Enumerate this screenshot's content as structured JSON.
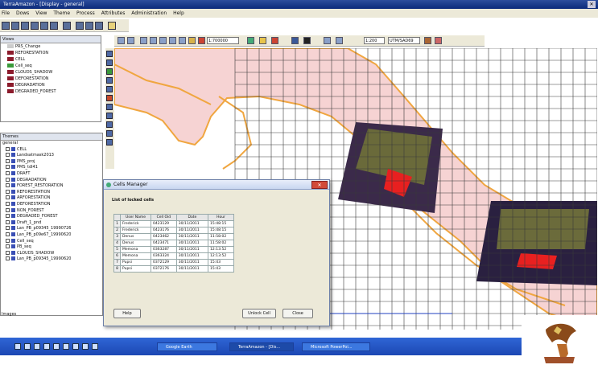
{
  "window": {
    "title": "TerraAmazon - [Display - general]"
  },
  "menu": [
    "File",
    "Dows",
    "View",
    "Theme",
    "Process",
    "Attributes",
    "Administration",
    "Help"
  ],
  "map_toolbar": {
    "scale": "1:700000",
    "zoom": "1:200",
    "projection": "UTM/SAD69"
  },
  "layers": {
    "header": "Views",
    "items": [
      {
        "label": "PRS_Change",
        "color": "#cccccc"
      },
      {
        "label": "REFORESTATION",
        "color": "#8b1a2b"
      },
      {
        "label": "CELL",
        "color": "#8b1a2b"
      },
      {
        "label": "Cell_seq",
        "color": "#3a9a3a"
      },
      {
        "label": "CLOUDS_SHADOW",
        "color": "#8b1a2b"
      },
      {
        "label": "DEFORESTATION",
        "color": "#8b1a2b"
      },
      {
        "label": "DEGRADATION",
        "color": "#8b1a2b"
      },
      {
        "label": "DEGRADED_FOREST",
        "color": "#8b1a2b"
      }
    ]
  },
  "themes": {
    "header": "Themes",
    "root": "general",
    "items": [
      "CELL",
      "Landsatmask2013",
      "PMS_proj",
      "PMS_tdl41",
      "DRAFT",
      "DEGRADATION",
      "FOREST_RESTORATION",
      "REFORESTATION",
      "ARFORESTATION",
      "DEFORESTATION",
      "NON_FOREST",
      "DEGRADED_FOREST",
      "Draft_1_pnd",
      "Lan_PB_p09345_19990726",
      "Lan_PB_p09e67_19990620",
      "Cell_seq",
      "PB_seq",
      "CLOUDS_SHADOW",
      "Lan_PB_p09345_19990620"
    ],
    "footer": "Images"
  },
  "dialog": {
    "title": "Cells Manager",
    "subtitle": "List of locked cells",
    "close_label": "✕",
    "columns": [
      "User Name",
      "Cell Oid",
      "Date",
      "Hour"
    ],
    "rows": [
      [
        "Frederick",
        "0423129",
        "30/11/2011",
        "15:48:15"
      ],
      [
        "Frederick",
        "0423176",
        "30/11/2011",
        "15:48:15"
      ],
      [
        "Denus",
        "0423462",
        "30/11/2011",
        "11:58:02"
      ],
      [
        "Denus",
        "0423471",
        "30/11/2011",
        "11:58:02"
      ],
      [
        "Memona",
        "0363287",
        "30/11/2011",
        "12:13:52"
      ],
      [
        "Memona",
        "0363324",
        "30/11/2011",
        "12:13:52"
      ],
      [
        "Pupsi",
        "0372129",
        "30/11/2011",
        "15:43"
      ],
      [
        "Pupsi",
        "0372176",
        "30/11/2011",
        "15:43"
      ]
    ],
    "buttons": {
      "help": "Help",
      "unlock": "Unlock Cell",
      "close": "Close"
    }
  },
  "taskbar": {
    "items": [
      "Google Earth",
      "TerraAmazon - [Dis...",
      "Microsoft PowerPoi..."
    ]
  },
  "colors": {
    "titlebar": "#0b2a7a",
    "taskbar": "#1c47b3",
    "land_fill": "#f6d3d3",
    "boundary": "#f0a640",
    "grid": "#3a3a3a"
  }
}
